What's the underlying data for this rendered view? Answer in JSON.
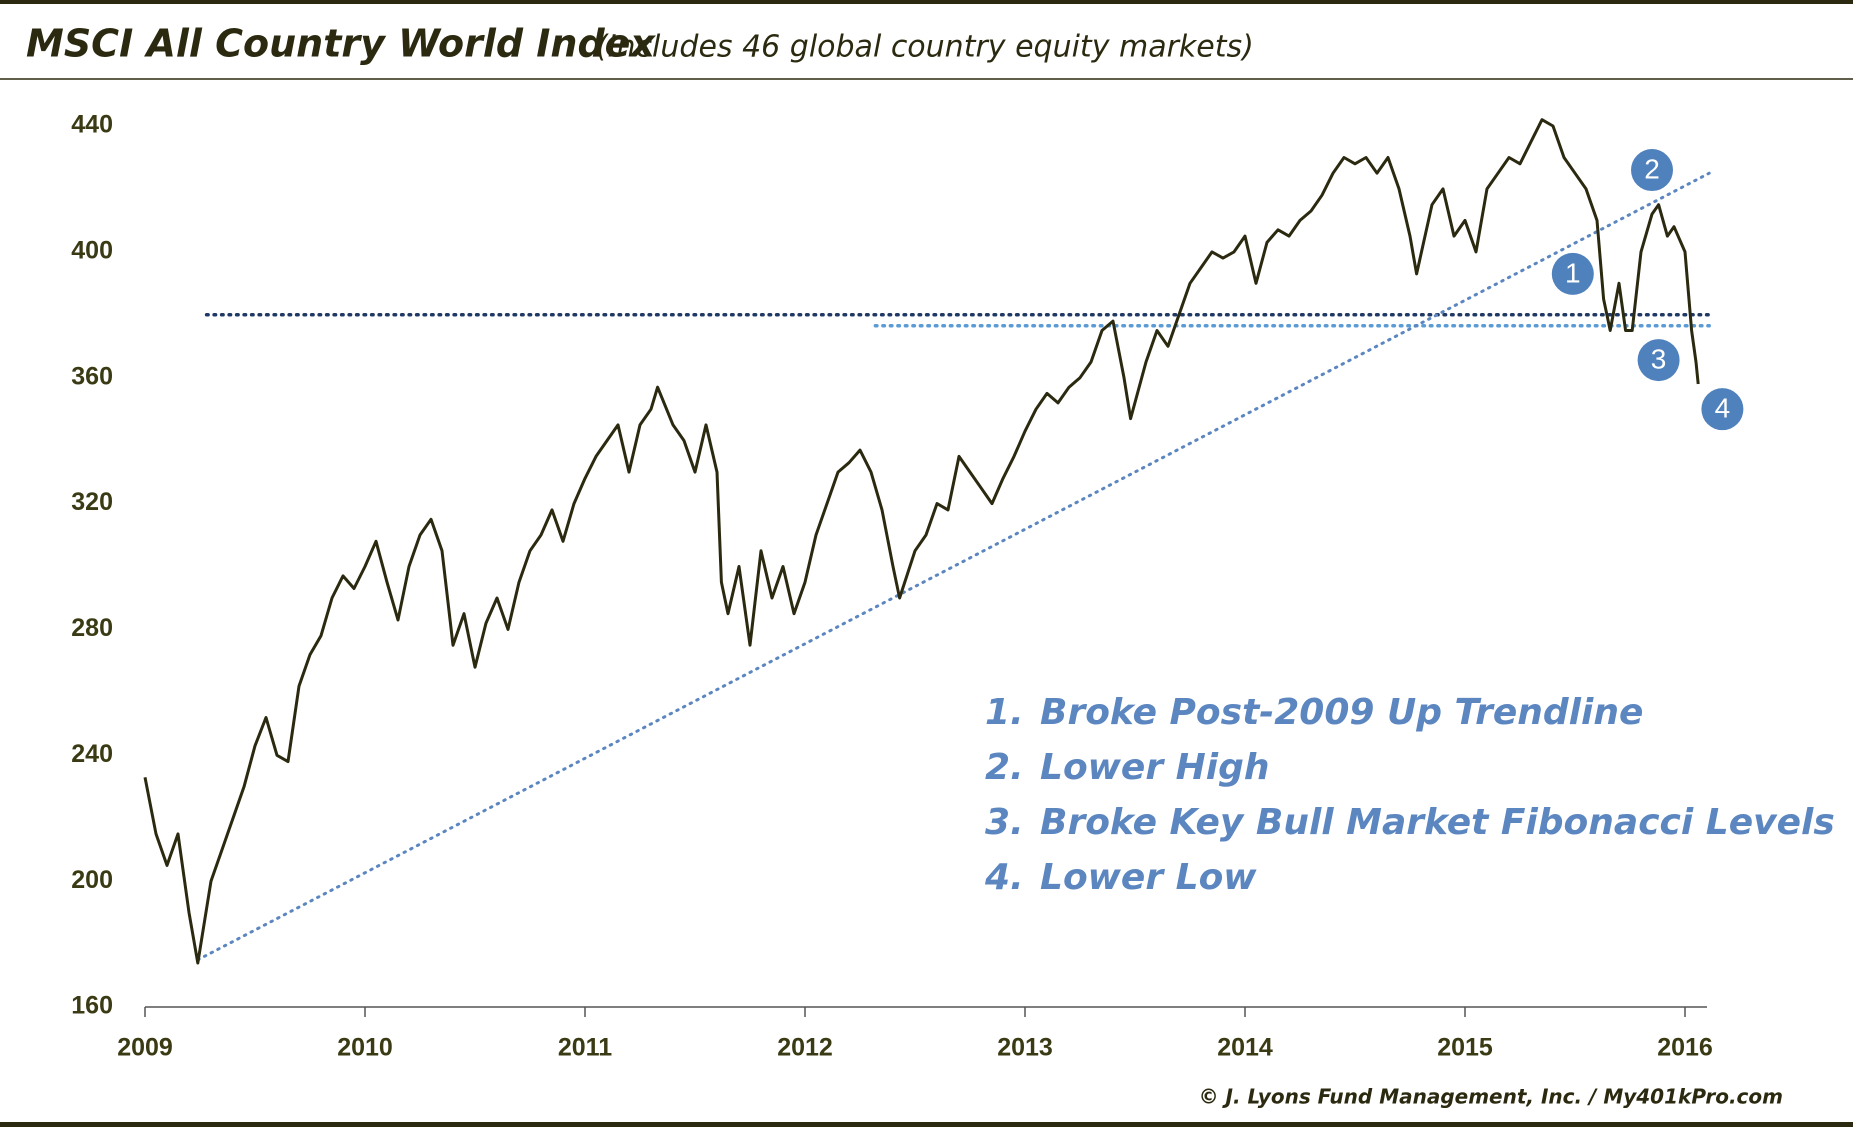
{
  "chart_data": {
    "type": "line",
    "title": "MSCI All Country World Index",
    "subtitle": "(Includes 46 global country equity markets)",
    "color": "#2b2a10",
    "xlim": [
      2009,
      2016.1
    ],
    "xticks": [
      2009,
      2010,
      2011,
      2012,
      2013,
      2014,
      2015,
      2016
    ],
    "ylim": [
      160,
      440
    ],
    "yticks": [
      160,
      200,
      240,
      280,
      320,
      360,
      400,
      440
    ],
    "x": [
      2009.0,
      2009.05,
      2009.1,
      2009.15,
      2009.2,
      2009.24,
      2009.3,
      2009.35,
      2009.4,
      2009.45,
      2009.5,
      2009.55,
      2009.6,
      2009.65,
      2009.7,
      2009.75,
      2009.8,
      2009.85,
      2009.9,
      2009.95,
      2010.0,
      2010.05,
      2010.1,
      2010.15,
      2010.2,
      2010.25,
      2010.3,
      2010.35,
      2010.4,
      2010.45,
      2010.5,
      2010.55,
      2010.6,
      2010.65,
      2010.7,
      2010.75,
      2010.8,
      2010.85,
      2010.9,
      2010.95,
      2011.0,
      2011.05,
      2011.1,
      2011.15,
      2011.2,
      2011.25,
      2011.3,
      2011.33,
      2011.4,
      2011.45,
      2011.5,
      2011.55,
      2011.6,
      2011.62,
      2011.65,
      2011.7,
      2011.75,
      2011.8,
      2011.85,
      2011.9,
      2011.95,
      2012.0,
      2012.05,
      2012.1,
      2012.15,
      2012.2,
      2012.25,
      2012.3,
      2012.35,
      2012.4,
      2012.43,
      2012.5,
      2012.55,
      2012.6,
      2012.65,
      2012.7,
      2012.75,
      2012.8,
      2012.85,
      2012.9,
      2012.95,
      2013.0,
      2013.05,
      2013.1,
      2013.15,
      2013.2,
      2013.25,
      2013.3,
      2013.35,
      2013.4,
      2013.45,
      2013.48,
      2013.55,
      2013.6,
      2013.65,
      2013.7,
      2013.75,
      2013.8,
      2013.85,
      2013.9,
      2013.95,
      2014.0,
      2014.05,
      2014.1,
      2014.15,
      2014.2,
      2014.25,
      2014.3,
      2014.35,
      2014.4,
      2014.45,
      2014.5,
      2014.55,
      2014.6,
      2014.65,
      2014.7,
      2014.75,
      2014.78,
      2014.85,
      2014.9,
      2014.95,
      2015.0,
      2015.05,
      2015.1,
      2015.15,
      2015.2,
      2015.25,
      2015.3,
      2015.35,
      2015.4,
      2015.45,
      2015.5,
      2015.55,
      2015.6,
      2015.63,
      2015.66,
      2015.7,
      2015.73,
      2015.76,
      2015.8,
      2015.85,
      2015.88,
      2015.92,
      2015.95,
      2016.0,
      2016.03,
      2016.05,
      2016.06
    ],
    "values": [
      233,
      215,
      205,
      215,
      190,
      174,
      200,
      210,
      220,
      230,
      243,
      252,
      240,
      238,
      262,
      272,
      278,
      290,
      297,
      293,
      300,
      308,
      295,
      283,
      300,
      310,
      315,
      305,
      275,
      285,
      268,
      282,
      290,
      280,
      295,
      305,
      310,
      318,
      308,
      320,
      328,
      335,
      340,
      345,
      330,
      345,
      350,
      357,
      345,
      340,
      330,
      345,
      330,
      295,
      285,
      300,
      275,
      305,
      290,
      300,
      285,
      295,
      310,
      320,
      330,
      333,
      337,
      330,
      318,
      300,
      290,
      305,
      310,
      320,
      318,
      335,
      330,
      325,
      320,
      328,
      335,
      343,
      350,
      355,
      352,
      357,
      360,
      365,
      375,
      378,
      360,
      347,
      365,
      375,
      370,
      380,
      390,
      395,
      400,
      398,
      400,
      405,
      390,
      403,
      407,
      405,
      410,
      413,
      418,
      425,
      430,
      428,
      430,
      425,
      430,
      420,
      405,
      393,
      415,
      420,
      405,
      410,
      400,
      420,
      425,
      430,
      428,
      435,
      442,
      440,
      430,
      425,
      420,
      410,
      385,
      375,
      390,
      375,
      375,
      400,
      412,
      415,
      405,
      408,
      400,
      375,
      365,
      358
    ],
    "trendline": {
      "x": [
        2009.24,
        2016.11
      ],
      "y": [
        175,
        425
      ]
    },
    "reference_lines": [
      {
        "x": [
          2009.28,
          2016.11
        ],
        "y": 380,
        "color": "#1f3864"
      },
      {
        "x": [
          2012.32,
          2016.11
        ],
        "y": 376.5,
        "color": "#5b9bd5"
      }
    ],
    "markers": [
      {
        "label": "1",
        "x": 2015.49,
        "y": 393
      },
      {
        "label": "2",
        "x": 2015.85,
        "y": 426
      },
      {
        "label": "3",
        "x": 2015.88,
        "y": 365.6
      },
      {
        "label": "4",
        "x": 2016.17,
        "y": 350
      }
    ],
    "notes": [
      {
        "number": "1.",
        "text": "Broke Post-2009 Up Trendline"
      },
      {
        "number": "2.",
        "text": "Lower High"
      },
      {
        "number": "3.",
        "text": "Broke Key Bull Market Fibonacci Levels"
      },
      {
        "number": "4.",
        "text": "Lower Low"
      }
    ],
    "source": "© J. Lyons Fund Management, Inc. / My401kPro.com"
  }
}
